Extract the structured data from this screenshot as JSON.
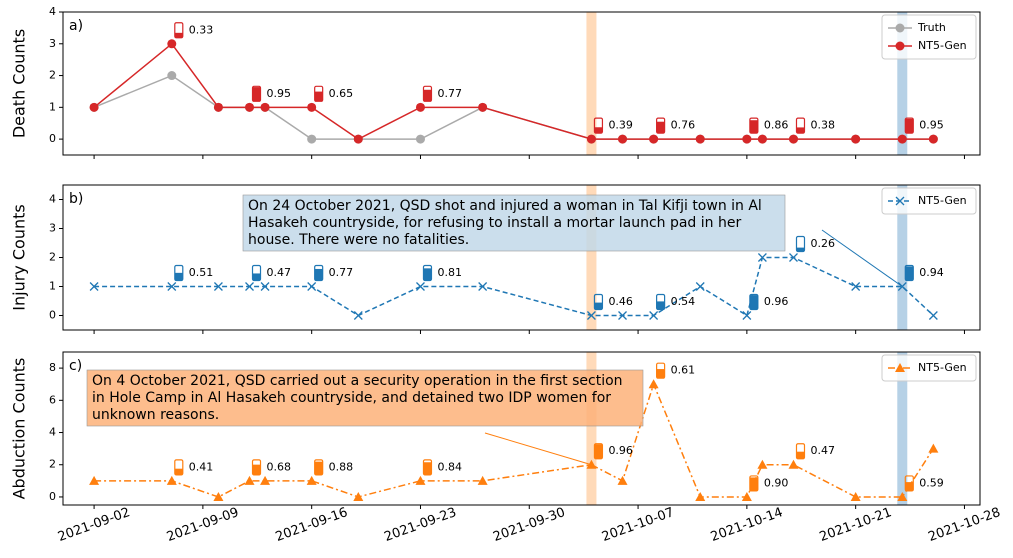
{
  "chart_data": [
    {
      "type": "line",
      "panel_label": "a)",
      "ylabel": "Death Counts",
      "legend": "upper right",
      "x": [
        "2021-09-02",
        "2021-09-07",
        "2021-09-10",
        "2021-09-12",
        "2021-09-13",
        "2021-09-16",
        "2021-09-19",
        "2021-09-23",
        "2021-09-27",
        "2021-10-04",
        "2021-10-06",
        "2021-10-08",
        "2021-10-11",
        "2021-10-14",
        "2021-10-15",
        "2021-10-17",
        "2021-10-21",
        "2021-10-24",
        "2021-10-26"
      ],
      "series": [
        {
          "name": "Truth",
          "color": "#aaaaaa",
          "marker": "circle",
          "linestyle": "solid",
          "values": [
            1,
            2,
            1,
            1,
            1,
            0,
            0,
            0,
            1,
            0,
            0,
            0,
            0,
            0,
            0,
            0,
            0,
            0,
            0
          ]
        },
        {
          "name": "NT5-Gen",
          "color": "#d62728",
          "marker": "circle",
          "linestyle": "solid",
          "values": [
            1,
            3,
            1,
            1,
            1,
            1,
            0,
            1,
            1,
            0,
            0,
            0,
            0,
            0,
            0,
            0,
            0,
            0,
            0
          ]
        }
      ],
      "confidence_series": 1,
      "confidence": [
        {
          "x": "2021-09-07",
          "value": 0.33
        },
        {
          "x": "2021-09-12",
          "value": 0.95
        },
        {
          "x": "2021-09-16",
          "value": 0.65
        },
        {
          "x": "2021-09-23",
          "value": 0.77
        },
        {
          "x": "2021-10-04",
          "value": 0.39
        },
        {
          "x": "2021-10-08",
          "value": 0.76
        },
        {
          "x": "2021-10-14",
          "value": 0.86
        },
        {
          "x": "2021-10-17",
          "value": 0.38
        },
        {
          "x": "2021-10-24",
          "value": 0.95
        }
      ],
      "highlights": [
        {
          "x": "2021-10-04",
          "color": "#ffd3ad"
        },
        {
          "x": "2021-10-24",
          "color": "#a9c9e2"
        }
      ],
      "xlim": [
        "2021-08-31",
        "2021-10-29"
      ],
      "xticks": [
        "2021-09-02",
        "2021-09-09",
        "2021-09-16",
        "2021-09-23",
        "2021-09-30",
        "2021-10-07",
        "2021-10-14",
        "2021-10-21",
        "2021-10-28"
      ],
      "xtick_labels": false,
      "ylim": [
        -0.5,
        4
      ],
      "yticks": [
        0,
        1,
        2,
        3,
        4
      ]
    },
    {
      "type": "line",
      "panel_label": "b)",
      "ylabel": "Injury Counts",
      "legend": "upper right",
      "x": [
        "2021-09-02",
        "2021-09-07",
        "2021-09-10",
        "2021-09-12",
        "2021-09-13",
        "2021-09-16",
        "2021-09-19",
        "2021-09-23",
        "2021-09-27",
        "2021-10-04",
        "2021-10-06",
        "2021-10-08",
        "2021-10-11",
        "2021-10-14",
        "2021-10-15",
        "2021-10-17",
        "2021-10-21",
        "2021-10-24",
        "2021-10-26"
      ],
      "series": [
        {
          "name": "NT5-Gen",
          "color": "#1f77b4",
          "marker": "x",
          "linestyle": "dashed",
          "values": [
            1,
            1,
            1,
            1,
            1,
            1,
            0,
            1,
            1,
            0,
            0,
            0,
            1,
            0,
            2,
            2,
            1,
            1,
            0
          ]
        }
      ],
      "confidence_series": 0,
      "confidence": [
        {
          "x": "2021-09-07",
          "value": 0.51
        },
        {
          "x": "2021-09-12",
          "value": 0.47
        },
        {
          "x": "2021-09-16",
          "value": 0.77
        },
        {
          "x": "2021-09-23",
          "value": 0.81
        },
        {
          "x": "2021-10-04",
          "value": 0.46
        },
        {
          "x": "2021-10-08",
          "value": 0.54
        },
        {
          "x": "2021-10-14",
          "value": 0.96
        },
        {
          "x": "2021-10-17",
          "value": 0.26
        },
        {
          "x": "2021-10-24",
          "value": 0.94
        }
      ],
      "highlights": [
        {
          "x": "2021-10-04",
          "color": "#ffd3ad"
        },
        {
          "x": "2021-10-24",
          "color": "#a9c9e2"
        }
      ],
      "annotation": {
        "x": "2021-10-24",
        "color": "#c3d9e9",
        "lines": [
          "On 24 October 2021, QSD shot and injured a woman in Tal Kifji town in Al",
          "Hasakeh countryside, for refusing to install a mortar launch pad in her",
          "house. There were no fatalities."
        ]
      },
      "xlim": [
        "2021-08-31",
        "2021-10-29"
      ],
      "xticks": [
        "2021-09-02",
        "2021-09-09",
        "2021-09-16",
        "2021-09-23",
        "2021-09-30",
        "2021-10-07",
        "2021-10-14",
        "2021-10-21",
        "2021-10-28"
      ],
      "xtick_labels": false,
      "ylim": [
        -0.5,
        4.5
      ],
      "yticks": [
        0,
        1,
        2,
        3,
        4
      ]
    },
    {
      "type": "line",
      "panel_label": "c)",
      "ylabel": "Abduction Counts",
      "legend": "upper right",
      "x": [
        "2021-09-02",
        "2021-09-07",
        "2021-09-10",
        "2021-09-12",
        "2021-09-13",
        "2021-09-16",
        "2021-09-19",
        "2021-09-23",
        "2021-09-27",
        "2021-10-04",
        "2021-10-06",
        "2021-10-08",
        "2021-10-11",
        "2021-10-14",
        "2021-10-15",
        "2021-10-17",
        "2021-10-21",
        "2021-10-24",
        "2021-10-26"
      ],
      "series": [
        {
          "name": "NT5-Gen",
          "color": "#ff7f0e",
          "marker": "triangle",
          "linestyle": "dashdot",
          "values": [
            1,
            1,
            0,
            1,
            1,
            1,
            0,
            1,
            1,
            2,
            1,
            7,
            0,
            0,
            2,
            2,
            0,
            0,
            3
          ]
        }
      ],
      "confidence_series": 0,
      "confidence": [
        {
          "x": "2021-09-07",
          "value": 0.41
        },
        {
          "x": "2021-09-12",
          "value": 0.68
        },
        {
          "x": "2021-09-16",
          "value": 0.88
        },
        {
          "x": "2021-09-23",
          "value": 0.84
        },
        {
          "x": "2021-10-04",
          "value": 0.96
        },
        {
          "x": "2021-10-08",
          "value": 0.61
        },
        {
          "x": "2021-10-14",
          "value": 0.9,
          "label": "0.90"
        },
        {
          "x": "2021-10-17",
          "value": 0.47
        },
        {
          "x": "2021-10-24",
          "value": 0.59
        }
      ],
      "highlights": [
        {
          "x": "2021-10-04",
          "color": "#ffd3ad"
        },
        {
          "x": "2021-10-24",
          "color": "#a9c9e2"
        }
      ],
      "annotation": {
        "x": "2021-10-04",
        "color": "#fdb27a",
        "lines": [
          "On 4 October 2021, QSD carried out a security operation in the first section",
          "in Hole Camp in Al Hasakeh countryside, and detained two IDP women for",
          "unknown reasons."
        ]
      },
      "xlim": [
        "2021-08-31",
        "2021-10-29"
      ],
      "xticks": [
        "2021-09-02",
        "2021-09-09",
        "2021-09-16",
        "2021-09-23",
        "2021-09-30",
        "2021-10-07",
        "2021-10-14",
        "2021-10-21",
        "2021-10-28"
      ],
      "xtick_labels": true,
      "ylim": [
        -0.5,
        9
      ],
      "yticks": [
        0,
        2,
        4,
        6,
        8
      ]
    }
  ]
}
